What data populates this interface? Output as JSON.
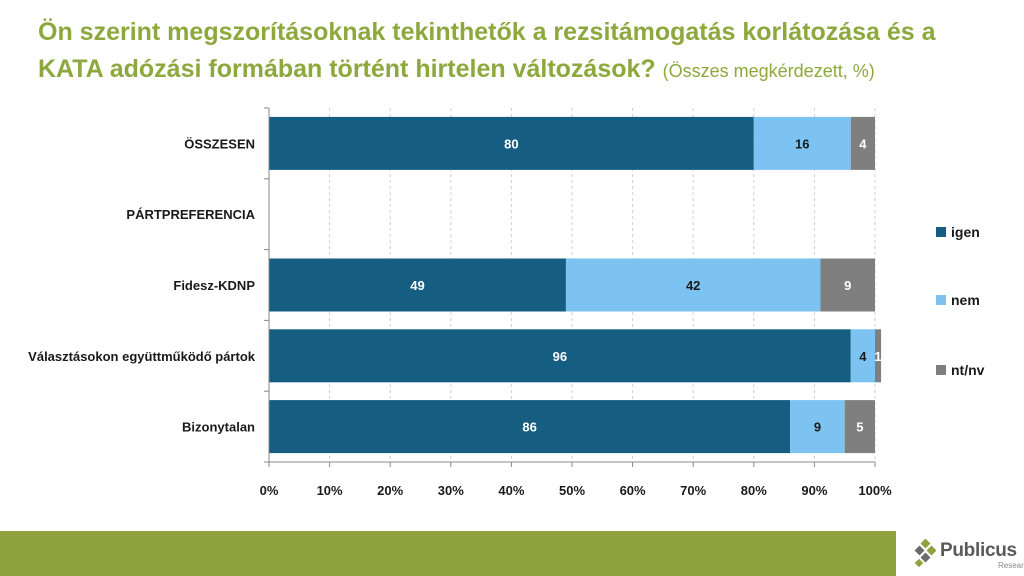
{
  "title": {
    "main": "Ön szerint megszorításoknak tekinthetők a rezsitámogatás korlátozása és a KATA adózási formában történt hirtelen változások?",
    "sub": "(Összes megkérdezett, %)"
  },
  "chart_data": {
    "type": "bar",
    "orientation": "horizontal",
    "stacked": true,
    "categories": [
      "ÖSSZESEN",
      "PÁRTPREFERENCIA",
      "Fidesz-KDNP",
      "Választásokon együttműködő pártok",
      "Bizonytalan"
    ],
    "series": [
      {
        "name": "igen",
        "color": "#155e82",
        "values": [
          80,
          null,
          49,
          96,
          86
        ]
      },
      {
        "name": "nem",
        "color": "#7dc3f2",
        "values": [
          16,
          null,
          42,
          4,
          9
        ]
      },
      {
        "name": "nt/nv",
        "color": "#7f7f7f",
        "values": [
          4,
          null,
          9,
          1,
          5
        ]
      }
    ],
    "xlim": [
      0,
      100
    ],
    "ticks": [
      "0%",
      "10%",
      "20%",
      "30%",
      "40%",
      "50%",
      "60%",
      "70%",
      "80%",
      "90%",
      "100%"
    ],
    "grid": true,
    "legend": "right"
  },
  "brand": {
    "name": "Publicus",
    "sub": "Research",
    "footer_color": "#8fa23e"
  }
}
